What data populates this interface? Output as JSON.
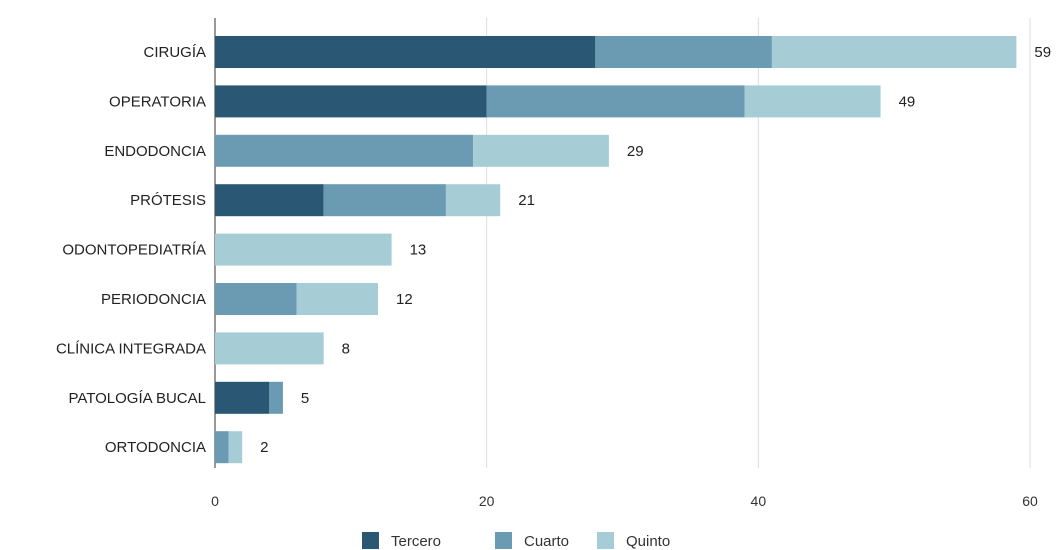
{
  "chart_data": {
    "type": "bar",
    "orientation": "horizontal",
    "stacked": true,
    "categories": [
      "CIRUGÍA",
      "OPERATORIA",
      "ENDODONCIA",
      "PRÓTESIS",
      "ODONTOPEDIATRÍA",
      "PERIODONCIA",
      "CLÍNICA INTEGRADA",
      "PATOLOGÍA BUCAL",
      "ORTODONCIA"
    ],
    "series": [
      {
        "name": "Tercero",
        "color": "#2a5774",
        "values": [
          28,
          20,
          0,
          8,
          0,
          0,
          0,
          4,
          0
        ]
      },
      {
        "name": "Cuarto",
        "color": "#6b9bb2",
        "values": [
          13,
          19,
          19,
          9,
          0,
          6,
          0,
          1,
          1
        ]
      },
      {
        "name": "Quinto",
        "color": "#a6cdd6",
        "values": [
          18,
          10,
          10,
          4,
          13,
          6,
          8,
          0,
          1
        ]
      }
    ],
    "totals": [
      "59",
      "49",
      "29",
      "21",
      "13",
      "12",
      "8",
      "5",
      "2"
    ],
    "xlim": [
      0,
      60
    ],
    "xticks": [
      "0",
      "20",
      "40",
      "60"
    ],
    "grid": true,
    "legend_position": "bottom"
  }
}
